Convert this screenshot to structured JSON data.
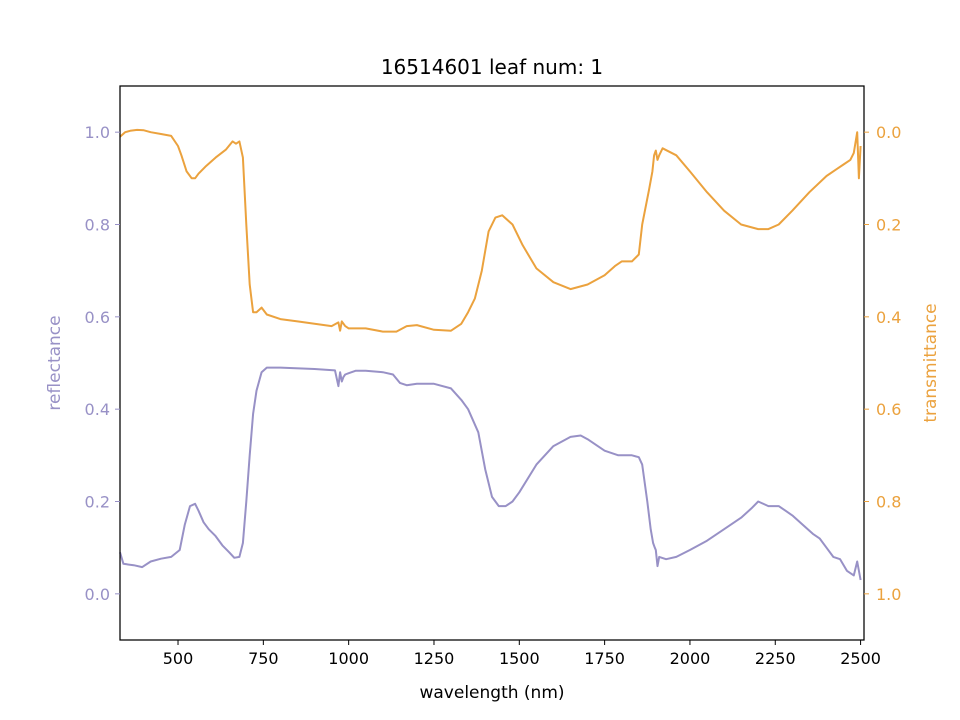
{
  "chart_data": {
    "type": "line",
    "title": "16514601 leaf num: 1",
    "xlabel": "wavelength (nm)",
    "ylabel_left": "reflectance",
    "ylabel_right": "transmittance",
    "xlim": [
      330,
      2510
    ],
    "ylim_left": [
      -0.1,
      1.1
    ],
    "ylim_right": [
      1.1,
      -0.1
    ],
    "right_axis_inverted": true,
    "x_ticks": [
      {
        "value": 500,
        "label": "500"
      },
      {
        "value": 750,
        "label": "750"
      },
      {
        "value": 1000,
        "label": "1000"
      },
      {
        "value": 1250,
        "label": "1250"
      },
      {
        "value": 1500,
        "label": "1500"
      },
      {
        "value": 1750,
        "label": "1750"
      },
      {
        "value": 2000,
        "label": "2000"
      },
      {
        "value": 2250,
        "label": "2250"
      },
      {
        "value": 2500,
        "label": "2500"
      }
    ],
    "y_ticks_left": [
      {
        "value": 0.0,
        "label": "0.0"
      },
      {
        "value": 0.2,
        "label": "0.2"
      },
      {
        "value": 0.4,
        "label": "0.4"
      },
      {
        "value": 0.6,
        "label": "0.6"
      },
      {
        "value": 0.8,
        "label": "0.8"
      },
      {
        "value": 1.0,
        "label": "1.0"
      }
    ],
    "y_ticks_right": [
      {
        "value": 0.0,
        "label": "0.0"
      },
      {
        "value": 0.2,
        "label": "0.2"
      },
      {
        "value": 0.4,
        "label": "0.4"
      },
      {
        "value": 0.6,
        "label": "0.6"
      },
      {
        "value": 0.8,
        "label": "0.8"
      },
      {
        "value": 1.0,
        "label": "1.0"
      }
    ],
    "grid": false,
    "series": [
      {
        "axis": "left",
        "color": "#9891c6",
        "x": [
          330,
          340,
          350,
          370,
          395,
          420,
          450,
          480,
          505,
          520,
          535,
          550,
          560,
          575,
          590,
          610,
          630,
          650,
          665,
          680,
          690,
          700,
          710,
          720,
          730,
          745,
          760,
          800,
          900,
          960,
          970,
          975,
          980,
          985,
          990,
          1000,
          1020,
          1050,
          1100,
          1130,
          1150,
          1170,
          1200,
          1250,
          1300,
          1330,
          1350,
          1380,
          1400,
          1420,
          1440,
          1460,
          1480,
          1500,
          1550,
          1600,
          1650,
          1680,
          1700,
          1750,
          1790,
          1810,
          1830,
          1850,
          1860,
          1875,
          1885,
          1892,
          1897,
          1900,
          1905,
          1910,
          1930,
          1960,
          2000,
          2050,
          2100,
          2150,
          2180,
          2200,
          2230,
          2260,
          2280,
          2300,
          2330,
          2360,
          2380,
          2400,
          2420,
          2440,
          2460,
          2480,
          2490,
          2500
        ],
        "y": [
          0.09,
          0.065,
          0.064,
          0.062,
          0.058,
          0.07,
          0.076,
          0.08,
          0.095,
          0.15,
          0.19,
          0.195,
          0.18,
          0.155,
          0.14,
          0.125,
          0.105,
          0.09,
          0.078,
          0.08,
          0.11,
          0.2,
          0.3,
          0.39,
          0.44,
          0.48,
          0.49,
          0.49,
          0.487,
          0.484,
          0.45,
          0.48,
          0.46,
          0.47,
          0.475,
          0.478,
          0.483,
          0.483,
          0.48,
          0.475,
          0.457,
          0.452,
          0.455,
          0.455,
          0.445,
          0.42,
          0.4,
          0.35,
          0.27,
          0.21,
          0.19,
          0.19,
          0.2,
          0.22,
          0.28,
          0.32,
          0.34,
          0.343,
          0.335,
          0.31,
          0.3,
          0.3,
          0.3,
          0.296,
          0.28,
          0.2,
          0.14,
          0.11,
          0.1,
          0.095,
          0.06,
          0.08,
          0.075,
          0.08,
          0.095,
          0.115,
          0.14,
          0.165,
          0.185,
          0.2,
          0.19,
          0.19,
          0.18,
          0.17,
          0.15,
          0.13,
          0.12,
          0.1,
          0.08,
          0.075,
          0.05,
          0.04,
          0.07,
          0.03
        ]
      },
      {
        "axis": "right",
        "color": "#eba23e",
        "x": [
          330,
          345,
          360,
          380,
          400,
          420,
          450,
          480,
          500,
          510,
          525,
          540,
          550,
          560,
          580,
          610,
          640,
          660,
          670,
          680,
          690,
          700,
          710,
          720,
          730,
          745,
          760,
          800,
          850,
          900,
          950,
          970,
          975,
          980,
          990,
          1000,
          1050,
          1100,
          1140,
          1170,
          1200,
          1250,
          1300,
          1330,
          1350,
          1370,
          1390,
          1410,
          1430,
          1450,
          1480,
          1510,
          1550,
          1600,
          1650,
          1700,
          1750,
          1780,
          1800,
          1830,
          1850,
          1860,
          1880,
          1890,
          1895,
          1900,
          1905,
          1910,
          1920,
          1960,
          2000,
          2050,
          2100,
          2150,
          2200,
          2230,
          2260,
          2300,
          2350,
          2400,
          2430,
          2450,
          2470,
          2480,
          2490,
          2495,
          2500
        ],
        "y": [
          0.01,
          0.0,
          -0.003,
          -0.005,
          -0.004,
          0.0,
          0.004,
          0.008,
          0.03,
          0.05,
          0.085,
          0.1,
          0.1,
          0.09,
          0.075,
          0.055,
          0.038,
          0.02,
          0.025,
          0.02,
          0.055,
          0.2,
          0.33,
          0.39,
          0.39,
          0.38,
          0.395,
          0.405,
          0.41,
          0.415,
          0.42,
          0.412,
          0.43,
          0.41,
          0.42,
          0.425,
          0.425,
          0.432,
          0.432,
          0.42,
          0.418,
          0.428,
          0.43,
          0.415,
          0.39,
          0.36,
          0.3,
          0.215,
          0.185,
          0.18,
          0.2,
          0.245,
          0.295,
          0.325,
          0.34,
          0.33,
          0.31,
          0.29,
          0.28,
          0.28,
          0.265,
          0.2,
          0.125,
          0.085,
          0.05,
          0.04,
          0.06,
          0.05,
          0.035,
          0.05,
          0.085,
          0.13,
          0.17,
          0.2,
          0.21,
          0.21,
          0.2,
          0.17,
          0.13,
          0.095,
          0.08,
          0.07,
          0.06,
          0.045,
          0.0,
          0.1,
          0.03
        ]
      }
    ]
  }
}
